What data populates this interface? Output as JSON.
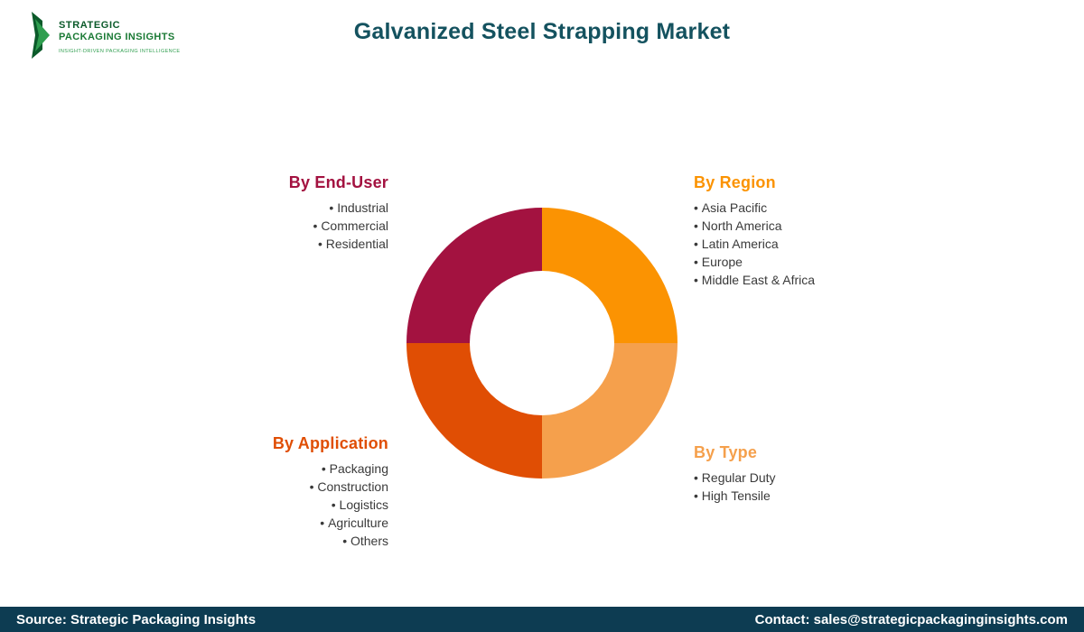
{
  "theme": {
    "title_color": "#14525F",
    "footer_bg": "#0D3C52",
    "footer_text": "#FFFFFF",
    "body_text": "#3A3A3A",
    "logo_dark_green": "#0B5A2A",
    "logo_green": "#1B7A35",
    "logo_light_green": "#2F9E4F"
  },
  "header": {
    "title": "Galvanized Steel Strapping Market",
    "logo": {
      "line1": "STRATEGIC",
      "line2": "PACKAGING INSIGHTS",
      "tagline": "INSIGHT-DRIVEN PACKAGING INTELLIGENCE"
    }
  },
  "segments": {
    "end_user": {
      "title": "By End-User",
      "color": "#A31240",
      "items": [
        "Industrial",
        "Commercial",
        "Residential"
      ]
    },
    "region": {
      "title": "By Region",
      "color": "#FB9302",
      "items": [
        "Asia Pacific",
        "North America",
        "Latin America",
        "Europe",
        "Middle East & Africa"
      ]
    },
    "application": {
      "title": "By Application",
      "color": "#E04E04",
      "items": [
        "Packaging",
        "Construction",
        "Logistics",
        "Agriculture",
        "Others"
      ]
    },
    "type": {
      "title": "By Type",
      "color": "#F5A04C",
      "items": [
        "Regular Duty",
        "High Tensile"
      ]
    }
  },
  "chart_data": {
    "type": "pie",
    "donut": true,
    "title": "Galvanized Steel Strapping Market",
    "labels": [
      "By Region",
      "By Type",
      "By Application",
      "By End-User"
    ],
    "values": [
      25,
      25,
      25,
      25
    ],
    "colors": [
      "#FB9302",
      "#F5A04C",
      "#E04E04",
      "#A31240"
    ],
    "start_angle_deg": 0,
    "note": "Four equal decorative quadrants, clockwise from top; no numeric values shown"
  },
  "footer": {
    "source": "Source: Strategic Packaging Insights",
    "contact": "Contact: sales@strategicpackaginginsights.com"
  }
}
